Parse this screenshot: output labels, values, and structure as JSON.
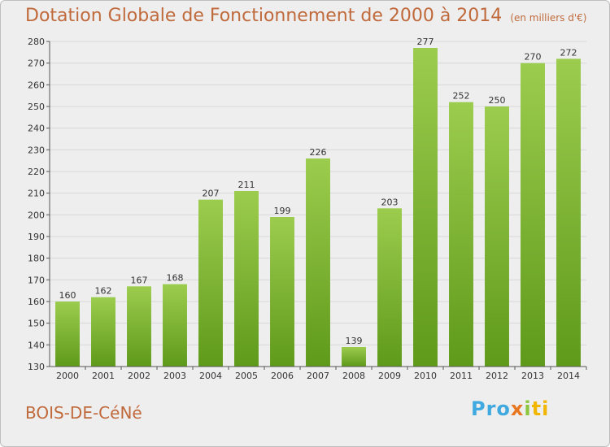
{
  "header": {
    "title": "Dotation Globale de Fonctionnement de 2000 à 2014",
    "subtitle": "(en milliers d'€)"
  },
  "footer": {
    "commune": "BOIS-DE-CéNé",
    "logo_parts": [
      "Pro",
      "x",
      "i",
      "ti"
    ]
  },
  "colors": {
    "bar_top": "#9ccc4e",
    "bar_bottom": "#5f9a1a",
    "title": "#c06a3c",
    "grid": "#d8d8d8"
  },
  "chart_data": {
    "type": "bar",
    "title": "Dotation Globale de Fonctionnement de 2000 à 2014",
    "categories": [
      "2000",
      "2001",
      "2002",
      "2003",
      "2004",
      "2005",
      "2006",
      "2007",
      "2008",
      "2009",
      "2010",
      "2011",
      "2012",
      "2013",
      "2014"
    ],
    "values": [
      160,
      162,
      167,
      168,
      207,
      211,
      199,
      226,
      139,
      203,
      277,
      252,
      250,
      270,
      272
    ],
    "yticks": [
      130,
      140,
      150,
      160,
      170,
      180,
      190,
      200,
      210,
      220,
      230,
      240,
      250,
      260,
      270,
      280
    ],
    "ylim": [
      130,
      280
    ],
    "grid": true,
    "xlabel": "",
    "ylabel": ""
  }
}
